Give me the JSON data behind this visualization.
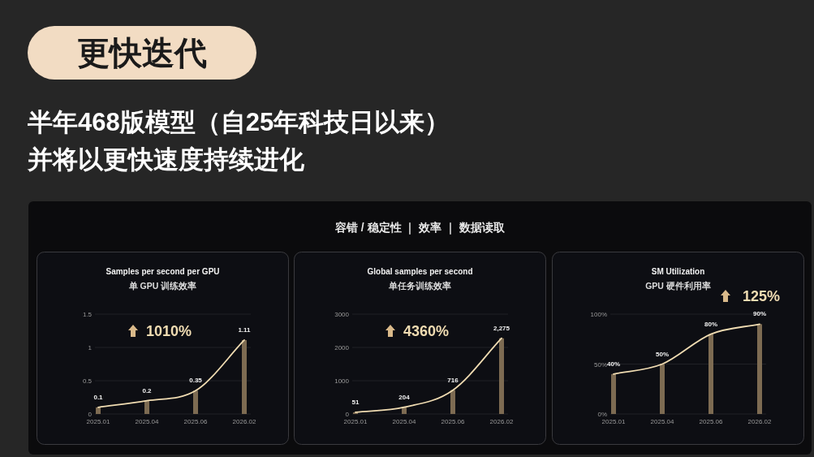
{
  "chart_data": [
    {
      "type": "other",
      "title": "更快迭代",
      "subtitle": "半年468版模型（自25年科技日以来）",
      "annotations": [
        "并将以更快速度持续进化",
        "容错 / 稳定性 ｜ 效率 ｜ 数据读取"
      ]
    },
    {
      "type": "bar",
      "title": "Samples per second per GPU",
      "subtitle": "单 GPU 训练效率",
      "categories": [
        "2025.01",
        "2025.04",
        "2025.06",
        "2026.02"
      ],
      "ylim": [
        0,
        1.5
      ],
      "yticks": [
        0,
        0.5,
        1,
        1.5
      ],
      "grid": "y",
      "marker": "none",
      "annotations": [
        "1010%"
      ],
      "series": [
        {
          "type": "bar",
          "color": "#7d6b52",
          "values": [
            0.1,
            0.2,
            0.35,
            1.11
          ],
          "value_labels": [
            "0.1",
            "0.2",
            "0.35",
            "1.11"
          ]
        },
        {
          "type": "line",
          "color": "#f0dcb2",
          "values": [
            0.1,
            0.2,
            0.35,
            1.11
          ]
        }
      ]
    },
    {
      "type": "bar",
      "title": "Global samples per second",
      "subtitle": "单任务训练效率",
      "categories": [
        "2025.01",
        "2025.04",
        "2025.06",
        "2026.02"
      ],
      "ylim": [
        0,
        3000
      ],
      "yticks": [
        0,
        1000,
        2000,
        3000
      ],
      "grid": "y",
      "marker": "none",
      "annotations": [
        "4360%"
      ],
      "series": [
        {
          "type": "bar",
          "color": "#7d6b52",
          "values": [
            51,
            204,
            716,
            2275
          ],
          "value_labels": [
            "51",
            "204",
            "716",
            "2,275"
          ]
        },
        {
          "type": "line",
          "color": "#f0dcb2",
          "values": [
            51,
            204,
            716,
            2275
          ]
        }
      ]
    },
    {
      "type": "bar",
      "title": "SM Utilization",
      "subtitle": "GPU 硬件利用率",
      "categories": [
        "2025.01",
        "2025.04",
        "2025.06",
        "2026.02"
      ],
      "ylim": [
        0,
        100
      ],
      "yticks": [
        {
          "value": 0,
          "label": "0%"
        },
        {
          "value": 50,
          "label": "50%"
        },
        {
          "value": 100,
          "label": "100%"
        }
      ],
      "grid": "y",
      "marker": "none",
      "annotations": [
        "125%"
      ],
      "series": [
        {
          "type": "bar",
          "color": "#7d6b52",
          "values": [
            40,
            50,
            80,
            90
          ],
          "value_labels": [
            "40%",
            "50%",
            "80%",
            "90%"
          ]
        },
        {
          "type": "line",
          "color": "#f0dcb2",
          "values": [
            40,
            50,
            80,
            90
          ]
        }
      ]
    }
  ]
}
